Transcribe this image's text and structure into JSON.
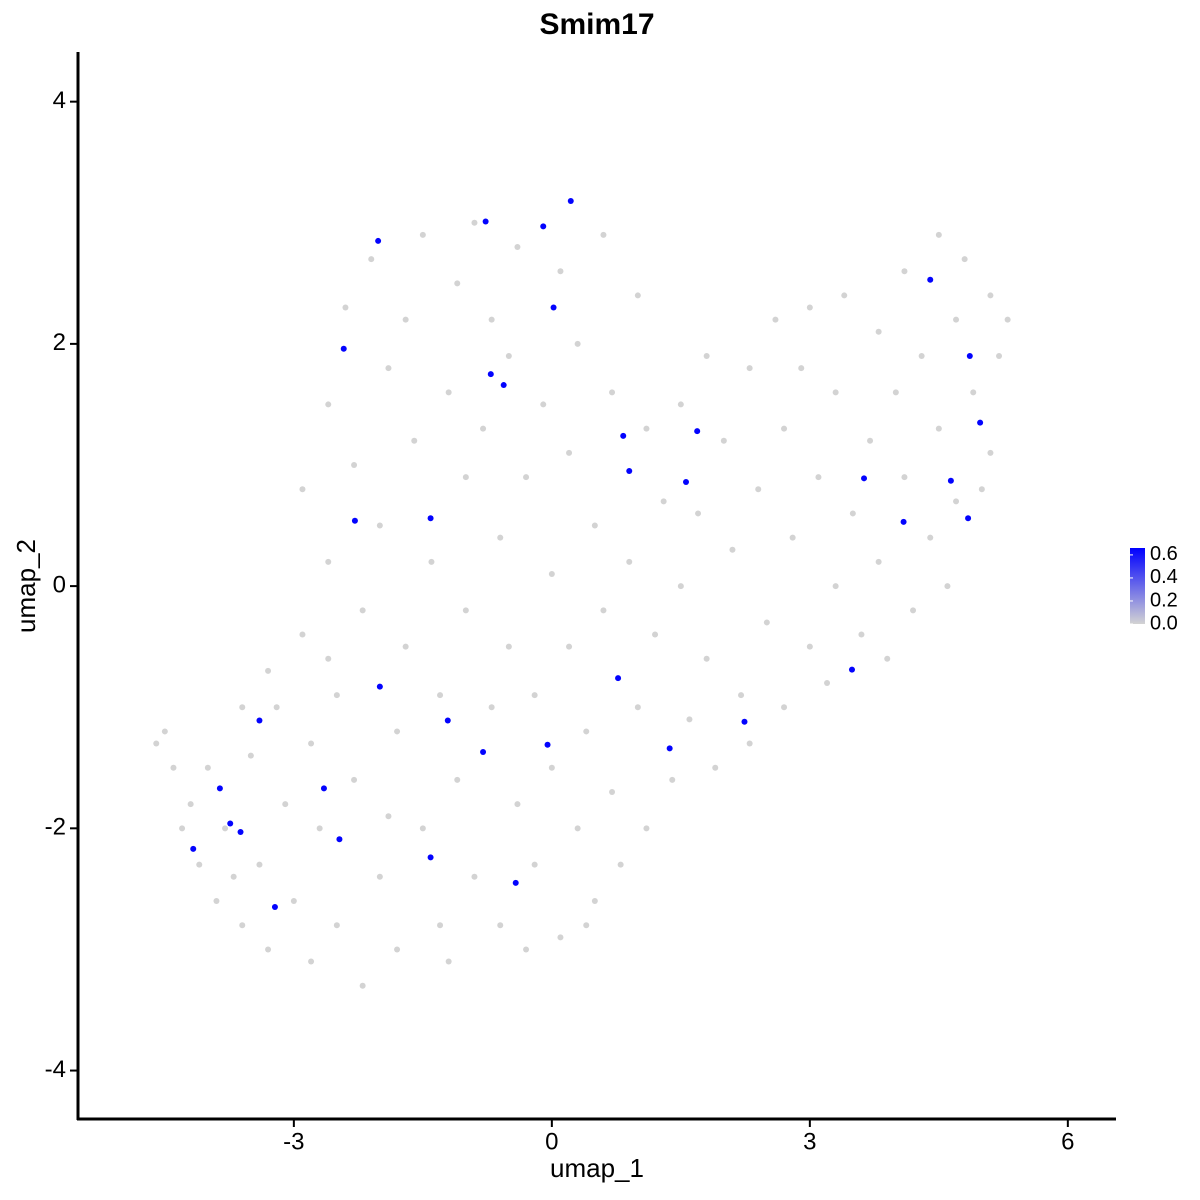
{
  "chart_data": {
    "type": "scatter",
    "title": "Smim17",
    "x_label": "umap_1",
    "y_label": "umap_2",
    "xlim": [
      -5.51,
      6.56
    ],
    "ylim": [
      -4.4,
      4.41
    ],
    "xticks": [
      -3,
      0,
      3,
      6
    ],
    "yticks": [
      -4,
      -2,
      0,
      2,
      4
    ],
    "low_color": "#d3d3d3",
    "high_color": "#0000ff",
    "color_lim": [
      0,
      0.66
    ],
    "color_ticks": [
      {
        "value": 0,
        "label": "0.0"
      },
      0.2,
      0.4,
      0.6
    ],
    "points": [
      [
        -4.6,
        -1.3,
        0
      ],
      [
        -4.5,
        -1.2,
        0
      ],
      [
        -4.4,
        -1.5,
        0
      ],
      [
        -4.2,
        -1.8,
        0
      ],
      [
        -4.0,
        -1.5,
        0
      ],
      [
        -4.1,
        -2.3,
        0
      ],
      [
        -3.9,
        -2.6,
        0
      ],
      [
        -3.8,
        -2.0,
        0
      ],
      [
        -3.6,
        -2.8,
        0
      ],
      [
        -3.5,
        -1.4,
        0
      ],
      [
        -3.4,
        -2.3,
        0
      ],
      [
        -3.3,
        -3.0,
        0
      ],
      [
        -3.2,
        -1.0,
        0
      ],
      [
        -3.1,
        -1.8,
        0
      ],
      [
        -3.0,
        -2.6,
        0
      ],
      [
        -2.9,
        -0.4,
        0
      ],
      [
        -2.9,
        0.8,
        0
      ],
      [
        -2.8,
        -1.3,
        0
      ],
      [
        -2.8,
        -3.1,
        0
      ],
      [
        -2.7,
        -2.0,
        0
      ],
      [
        -2.6,
        0.2,
        0
      ],
      [
        -2.6,
        1.5,
        0
      ],
      [
        -2.5,
        -0.9,
        0
      ],
      [
        -2.5,
        -2.8,
        0
      ],
      [
        -2.4,
        2.3,
        0
      ],
      [
        -2.3,
        -1.6,
        0
      ],
      [
        -2.3,
        1.0,
        0
      ],
      [
        -2.2,
        -3.3,
        0
      ],
      [
        -2.2,
        -0.2,
        0
      ],
      [
        -2.1,
        2.7,
        0
      ],
      [
        -2.0,
        -2.4,
        0
      ],
      [
        -2.0,
        0.5,
        0
      ],
      [
        -1.9,
        1.8,
        0
      ],
      [
        -1.8,
        -1.2,
        0
      ],
      [
        -1.8,
        -3.0,
        0
      ],
      [
        -1.7,
        2.2,
        0
      ],
      [
        -1.7,
        -0.5,
        0
      ],
      [
        -1.6,
        1.2,
        0
      ],
      [
        -1.5,
        -2.0,
        0
      ],
      [
        -1.5,
        2.9,
        0
      ],
      [
        -1.4,
        0.2,
        0
      ],
      [
        -1.3,
        -2.8,
        0
      ],
      [
        -1.3,
        -0.9,
        0
      ],
      [
        -1.2,
        1.6,
        0
      ],
      [
        -1.1,
        2.5,
        0
      ],
      [
        -1.1,
        -1.6,
        0
      ],
      [
        -1.0,
        -0.2,
        0
      ],
      [
        -1.0,
        0.9,
        0
      ],
      [
        -0.9,
        -2.4,
        0
      ],
      [
        -0.9,
        3.0,
        0
      ],
      [
        -0.8,
        1.3,
        0
      ],
      [
        -0.7,
        -1.0,
        0
      ],
      [
        -0.7,
        2.2,
        0
      ],
      [
        -0.6,
        -2.8,
        0
      ],
      [
        -0.6,
        0.4,
        0
      ],
      [
        -0.5,
        -0.5,
        0
      ],
      [
        -0.5,
        1.9,
        0
      ],
      [
        -0.4,
        -1.8,
        0
      ],
      [
        -0.4,
        2.8,
        0
      ],
      [
        -0.3,
        0.9,
        0
      ],
      [
        -0.2,
        -2.3,
        0
      ],
      [
        -0.2,
        -0.9,
        0
      ],
      [
        -0.1,
        1.5,
        0
      ],
      [
        0.0,
        -1.5,
        0
      ],
      [
        0.0,
        0.1,
        0
      ],
      [
        0.1,
        -2.9,
        0
      ],
      [
        0.1,
        2.6,
        0
      ],
      [
        0.2,
        -0.5,
        0
      ],
      [
        0.2,
        1.1,
        0
      ],
      [
        0.3,
        -2.0,
        0
      ],
      [
        0.3,
        2.0,
        0
      ],
      [
        0.4,
        -1.2,
        0
      ],
      [
        0.5,
        0.5,
        0
      ],
      [
        0.5,
        -2.6,
        0
      ],
      [
        0.6,
        2.9,
        0
      ],
      [
        0.6,
        -0.2,
        0
      ],
      [
        0.7,
        1.6,
        0
      ],
      [
        0.7,
        -1.7,
        0
      ],
      [
        0.8,
        -2.3,
        0
      ],
      [
        0.9,
        0.2,
        0
      ],
      [
        1.0,
        2.4,
        0
      ],
      [
        1.0,
        -1.0,
        0
      ],
      [
        1.1,
        1.3,
        0
      ],
      [
        1.1,
        -2.0,
        0
      ],
      [
        1.2,
        -0.4,
        0
      ],
      [
        1.3,
        0.7,
        0
      ],
      [
        1.4,
        -1.6,
        0
      ],
      [
        1.5,
        1.5,
        0
      ],
      [
        1.5,
        0.0,
        0
      ],
      [
        1.6,
        -1.1,
        0
      ],
      [
        1.7,
        0.6,
        0
      ],
      [
        1.8,
        1.9,
        0
      ],
      [
        1.8,
        -0.6,
        0
      ],
      [
        1.9,
        -1.5,
        0
      ],
      [
        2.0,
        1.2,
        0
      ],
      [
        2.1,
        0.3,
        0
      ],
      [
        2.2,
        -0.9,
        0
      ],
      [
        2.3,
        1.8,
        0
      ],
      [
        2.3,
        -1.3,
        0
      ],
      [
        2.4,
        0.8,
        0
      ],
      [
        2.5,
        -0.3,
        0
      ],
      [
        2.6,
        2.2,
        0
      ],
      [
        2.7,
        1.3,
        0
      ],
      [
        2.7,
        -1.0,
        0
      ],
      [
        2.8,
        0.4,
        0
      ],
      [
        2.9,
        1.8,
        0
      ],
      [
        3.0,
        -0.5,
        0
      ],
      [
        3.0,
        2.3,
        0
      ],
      [
        3.1,
        0.9,
        0
      ],
      [
        3.2,
        -0.8,
        0
      ],
      [
        3.3,
        1.6,
        0
      ],
      [
        3.3,
        0.0,
        0
      ],
      [
        3.4,
        2.4,
        0
      ],
      [
        3.5,
        0.6,
        0
      ],
      [
        3.6,
        -0.4,
        0
      ],
      [
        3.7,
        1.2,
        0
      ],
      [
        3.8,
        2.1,
        0
      ],
      [
        3.8,
        0.2,
        0
      ],
      [
        3.9,
        -0.6,
        0
      ],
      [
        4.0,
        1.6,
        0
      ],
      [
        4.1,
        2.6,
        0
      ],
      [
        4.1,
        0.9,
        0
      ],
      [
        4.2,
        -0.2,
        0
      ],
      [
        4.3,
        1.9,
        0
      ],
      [
        4.4,
        0.4,
        0
      ],
      [
        4.5,
        2.9,
        0
      ],
      [
        4.5,
        1.3,
        0
      ],
      [
        4.6,
        0.0,
        0
      ],
      [
        4.7,
        2.2,
        0
      ],
      [
        4.7,
        0.7,
        0
      ],
      [
        4.8,
        2.7,
        0
      ],
      [
        4.9,
        1.6,
        0
      ],
      [
        5.0,
        0.8,
        0
      ],
      [
        5.1,
        2.4,
        0
      ],
      [
        5.1,
        1.1,
        0
      ],
      [
        5.2,
        1.9,
        0
      ],
      [
        5.3,
        2.2,
        0
      ],
      [
        -2.6,
        -0.6,
        0
      ],
      [
        -3.3,
        -0.7,
        0
      ],
      [
        -3.6,
        -1.0,
        0
      ],
      [
        -4.3,
        -2.0,
        0
      ],
      [
        -3.7,
        -2.4,
        0
      ],
      [
        -1.9,
        -1.9,
        0
      ],
      [
        -1.2,
        -3.1,
        0
      ],
      [
        -0.3,
        -3.0,
        0
      ],
      [
        0.4,
        -2.8,
        0
      ],
      [
        0.22,
        3.18,
        0.65
      ],
      [
        -0.77,
        3.01,
        0.65
      ],
      [
        -0.1,
        2.97,
        0.65
      ],
      [
        -2.02,
        2.85,
        0.65
      ],
      [
        0.02,
        2.3,
        0.65
      ],
      [
        -2.42,
        1.96,
        0.65
      ],
      [
        -0.71,
        1.75,
        0.65
      ],
      [
        -0.56,
        1.66,
        0.65
      ],
      [
        0.83,
        1.24,
        0.65
      ],
      [
        1.69,
        1.28,
        0.65
      ],
      [
        0.9,
        0.95,
        0.65
      ],
      [
        1.56,
        0.86,
        0.65
      ],
      [
        -2.29,
        0.54,
        0.65
      ],
      [
        -1.41,
        0.56,
        0.65
      ],
      [
        4.4,
        2.53,
        0.65
      ],
      [
        4.86,
        1.9,
        0.65
      ],
      [
        4.98,
        1.35,
        0.65
      ],
      [
        3.63,
        0.89,
        0.65
      ],
      [
        4.64,
        0.87,
        0.65
      ],
      [
        4.09,
        0.53,
        0.65
      ],
      [
        4.84,
        0.56,
        0.65
      ],
      [
        3.49,
        -0.69,
        0.65
      ],
      [
        0.77,
        -0.76,
        0.65
      ],
      [
        -2.0,
        -0.83,
        0.65
      ],
      [
        -3.4,
        -1.11,
        0.65
      ],
      [
        -1.21,
        -1.11,
        0.65
      ],
      [
        2.24,
        -1.12,
        0.65
      ],
      [
        -0.05,
        -1.31,
        0.65
      ],
      [
        1.37,
        -1.34,
        0.65
      ],
      [
        -0.8,
        -1.37,
        0.65
      ],
      [
        -3.86,
        -1.67,
        0.65
      ],
      [
        -2.65,
        -1.67,
        0.65
      ],
      [
        -3.74,
        -1.96,
        0.65
      ],
      [
        -3.62,
        -2.03,
        0.65
      ],
      [
        -2.47,
        -2.09,
        0.65
      ],
      [
        -4.17,
        -2.17,
        0.65
      ],
      [
        -1.41,
        -2.24,
        0.65
      ],
      [
        -0.42,
        -2.45,
        0.65
      ],
      [
        -3.22,
        -2.65,
        0.65
      ]
    ]
  }
}
